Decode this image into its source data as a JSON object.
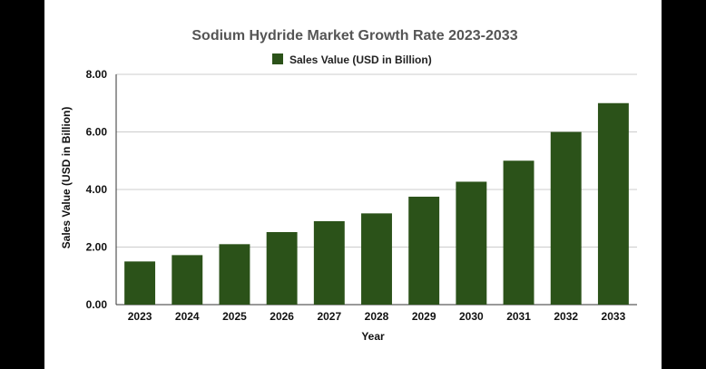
{
  "chart_data": {
    "type": "bar",
    "title": "Sodium Hydride Market Growth Rate 2023-2033",
    "xlabel": "Year",
    "ylabel": "Sales Value (USD in Billion)",
    "categories": [
      "2023",
      "2024",
      "2025",
      "2026",
      "2027",
      "2028",
      "2029",
      "2030",
      "2031",
      "2032",
      "2033"
    ],
    "series": [
      {
        "name": "Sales Value (USD in Billion)",
        "values": [
          1.5,
          1.72,
          2.1,
          2.52,
          2.9,
          3.17,
          3.75,
          4.27,
          5.0,
          6.0,
          7.0
        ],
        "color": "#2b5219"
      }
    ],
    "yticks": [
      "0.00",
      "2.00",
      "4.00",
      "6.00",
      "8.00"
    ],
    "ylim": [
      0,
      8
    ],
    "grid": true,
    "legend_position": "top"
  }
}
